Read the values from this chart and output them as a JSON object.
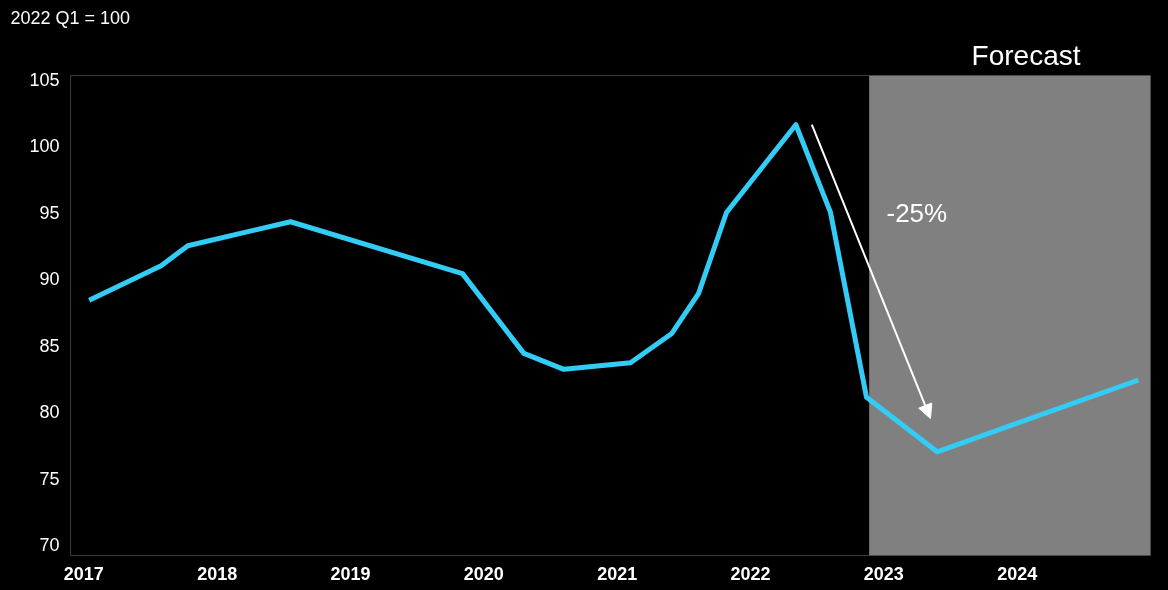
{
  "chart_data": {
    "type": "line",
    "ylabel": "2022 Q1 = 100",
    "x": [
      2017.04,
      2017.58,
      2017.78,
      2018.55,
      2019.84,
      2020.3,
      2020.6,
      2021.1,
      2021.41,
      2021.61,
      2021.82,
      2022.34,
      2022.6,
      2022.87,
      2023.4,
      2024.91
    ],
    "series": [
      {
        "color": "#33ccf5",
        "values": [
          88.4,
          91.0,
          92.5,
          94.3,
          90.4,
          84.4,
          83.2,
          83.7,
          85.9,
          88.9,
          95.0,
          101.6,
          95.0,
          81.1,
          77.0,
          82.4
        ]
      }
    ],
    "xlim": [
      2016.9,
      2025.0
    ],
    "xticks": [
      2017,
      2018,
      2019,
      2020,
      2021,
      2022,
      2023,
      2024
    ],
    "ylim": [
      69.2,
      105.3
    ],
    "yticks": [
      70,
      75,
      80,
      85,
      90,
      95,
      100,
      105
    ],
    "bands": [
      {
        "axis": "x",
        "from": 2022.89,
        "to": 2025.0,
        "label": "Forecast",
        "color": "#808080"
      }
    ],
    "annotations": [
      "-25%"
    ],
    "grid": false,
    "line_style": "solid",
    "marker": "none"
  }
}
